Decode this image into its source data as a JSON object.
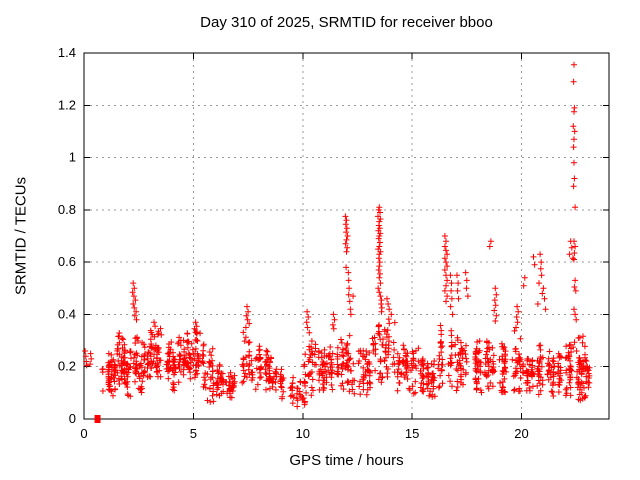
{
  "chart_data": {
    "type": "scatter",
    "title": "Day 310 of 2025, SRMTID for receiver bboo",
    "xlabel": "GPS time / hours",
    "ylabel": "SRMTID / TECUs",
    "xlim": [
      0,
      24
    ],
    "ylim": [
      0,
      1.4
    ],
    "xticks": [
      0,
      5,
      10,
      15,
      20
    ],
    "yticks": [
      0,
      0.2,
      0.4,
      0.6,
      0.8,
      1,
      1.2,
      1.4
    ],
    "grid": true,
    "legend": "none",
    "marker": {
      "shape": "plus",
      "size": 7,
      "color": "#ff0000"
    },
    "colors": {
      "axis": "#000000",
      "grid": "#999999",
      "text": "#000000",
      "marker": "#ff0000",
      "background": "#ffffff"
    },
    "series": [
      {
        "name": "SRMTID",
        "square_marker_points": [
          [
            0.62,
            0.0
          ]
        ],
        "outlier_points": [
          [
            0.05,
            0.26
          ],
          [
            0.08,
            0.24
          ],
          [
            0.1,
            0.22
          ],
          [
            0.12,
            0.205
          ],
          [
            0.3,
            0.25
          ],
          [
            0.33,
            0.23
          ],
          [
            0.28,
            0.21
          ],
          [
            2.25,
            0.52
          ],
          [
            2.3,
            0.5
          ],
          [
            2.22,
            0.485
          ],
          [
            2.28,
            0.47
          ],
          [
            2.35,
            0.455
          ],
          [
            2.25,
            0.44
          ],
          [
            2.3,
            0.425
          ],
          [
            2.38,
            0.41
          ],
          [
            2.32,
            0.395
          ],
          [
            2.4,
            0.38
          ],
          [
            3.2,
            0.37
          ],
          [
            3.25,
            0.355
          ],
          [
            5.1,
            0.37
          ],
          [
            5.15,
            0.355
          ],
          [
            5.05,
            0.345
          ],
          [
            7.45,
            0.43
          ],
          [
            7.5,
            0.41
          ],
          [
            7.42,
            0.395
          ],
          [
            7.48,
            0.38
          ],
          [
            7.55,
            0.365
          ],
          [
            7.4,
            0.35
          ],
          [
            10.2,
            0.41
          ],
          [
            10.25,
            0.39
          ],
          [
            10.18,
            0.37
          ],
          [
            10.22,
            0.35
          ],
          [
            10.3,
            0.33
          ],
          [
            11.4,
            0.4
          ],
          [
            11.45,
            0.38
          ],
          [
            11.38,
            0.36
          ],
          [
            11.42,
            0.345
          ],
          [
            11.95,
            0.775
          ],
          [
            12.0,
            0.76
          ],
          [
            11.97,
            0.745
          ],
          [
            12.02,
            0.73
          ],
          [
            11.98,
            0.715
          ],
          [
            12.05,
            0.7
          ],
          [
            12.0,
            0.685
          ],
          [
            11.96,
            0.67
          ],
          [
            12.03,
            0.655
          ],
          [
            12.0,
            0.64
          ],
          [
            11.98,
            0.58
          ],
          [
            12.08,
            0.56
          ],
          [
            12.1,
            0.53
          ],
          [
            12.12,
            0.5
          ],
          [
            12.1,
            0.475
          ],
          [
            12.15,
            0.45
          ],
          [
            12.18,
            0.42
          ],
          [
            12.2,
            0.4
          ],
          [
            12.3,
            0.47
          ],
          [
            13.5,
            0.81
          ],
          [
            13.47,
            0.8
          ],
          [
            13.53,
            0.79
          ],
          [
            13.44,
            0.775
          ],
          [
            13.55,
            0.765
          ],
          [
            13.5,
            0.755
          ],
          [
            13.48,
            0.74
          ],
          [
            13.52,
            0.73
          ],
          [
            13.46,
            0.72
          ],
          [
            13.54,
            0.71
          ],
          [
            13.5,
            0.7
          ],
          [
            13.47,
            0.69
          ],
          [
            13.53,
            0.675
          ],
          [
            13.5,
            0.66
          ],
          [
            13.45,
            0.65
          ],
          [
            13.55,
            0.64
          ],
          [
            13.5,
            0.63
          ],
          [
            13.48,
            0.615
          ],
          [
            13.52,
            0.6
          ],
          [
            13.5,
            0.585
          ],
          [
            13.47,
            0.57
          ],
          [
            13.53,
            0.555
          ],
          [
            13.5,
            0.54
          ],
          [
            13.55,
            0.52
          ],
          [
            13.45,
            0.5
          ],
          [
            13.5,
            0.485
          ],
          [
            13.55,
            0.47
          ],
          [
            13.6,
            0.455
          ],
          [
            13.58,
            0.44
          ],
          [
            13.62,
            0.425
          ],
          [
            13.6,
            0.41
          ],
          [
            13.85,
            0.46
          ],
          [
            13.9,
            0.44
          ],
          [
            13.95,
            0.42
          ],
          [
            14.05,
            0.4
          ],
          [
            16.5,
            0.7
          ],
          [
            16.55,
            0.68
          ],
          [
            16.5,
            0.66
          ],
          [
            16.55,
            0.645
          ],
          [
            16.6,
            0.63
          ],
          [
            16.5,
            0.615
          ],
          [
            16.55,
            0.6
          ],
          [
            16.6,
            0.585
          ],
          [
            16.5,
            0.57
          ],
          [
            16.55,
            0.55
          ],
          [
            16.6,
            0.53
          ],
          [
            16.55,
            0.51
          ],
          [
            16.5,
            0.49
          ],
          [
            16.6,
            0.47
          ],
          [
            16.55,
            0.45
          ],
          [
            16.75,
            0.55
          ],
          [
            16.8,
            0.52
          ],
          [
            16.78,
            0.49
          ],
          [
            16.82,
            0.46
          ],
          [
            16.76,
            0.43
          ],
          [
            16.85,
            0.4
          ],
          [
            17.05,
            0.55
          ],
          [
            17.1,
            0.52
          ],
          [
            17.08,
            0.49
          ],
          [
            17.12,
            0.46
          ],
          [
            17.45,
            0.56
          ],
          [
            17.5,
            0.53
          ],
          [
            17.48,
            0.5
          ],
          [
            17.55,
            0.47
          ],
          [
            18.6,
            0.68
          ],
          [
            18.55,
            0.66
          ],
          [
            18.8,
            0.5
          ],
          [
            18.85,
            0.475
          ],
          [
            18.78,
            0.455
          ],
          [
            18.82,
            0.435
          ],
          [
            18.75,
            0.415
          ],
          [
            18.85,
            0.395
          ],
          [
            18.8,
            0.375
          ],
          [
            19.8,
            0.43
          ],
          [
            19.85,
            0.41
          ],
          [
            19.78,
            0.39
          ],
          [
            19.82,
            0.37
          ],
          [
            19.75,
            0.35
          ],
          [
            20.15,
            0.54
          ],
          [
            20.1,
            0.51
          ],
          [
            20.55,
            0.62
          ],
          [
            20.6,
            0.59
          ],
          [
            20.85,
            0.63
          ],
          [
            20.9,
            0.6
          ],
          [
            20.88,
            0.575
          ],
          [
            20.92,
            0.55
          ],
          [
            20.8,
            0.52
          ],
          [
            21.0,
            0.5
          ],
          [
            20.95,
            0.48
          ],
          [
            21.05,
            0.46
          ],
          [
            20.75,
            0.44
          ],
          [
            21.1,
            0.42
          ],
          [
            22.25,
            0.68
          ],
          [
            22.3,
            0.655
          ],
          [
            22.2,
            0.63
          ],
          [
            22.35,
            0.615
          ],
          [
            22.4,
            1.355
          ],
          [
            22.38,
            1.29
          ],
          [
            22.42,
            1.19
          ],
          [
            22.4,
            1.175
          ],
          [
            22.37,
            1.12
          ],
          [
            22.43,
            1.1
          ],
          [
            22.4,
            1.07
          ],
          [
            22.38,
            1.04
          ],
          [
            22.4,
            0.98
          ],
          [
            22.42,
            0.92
          ],
          [
            22.38,
            0.89
          ],
          [
            22.45,
            0.81
          ],
          [
            22.4,
            0.68
          ],
          [
            22.45,
            0.66
          ],
          [
            22.42,
            0.635
          ],
          [
            22.4,
            0.61
          ],
          [
            22.45,
            0.53
          ],
          [
            22.42,
            0.505
          ],
          [
            22.48,
            0.49
          ],
          [
            22.4,
            0.42
          ],
          [
            22.45,
            0.4
          ],
          [
            22.5,
            0.38
          ]
        ],
        "baseline_bands": [
          {
            "x0": 0.75,
            "x1": 1.15,
            "n": 22,
            "ymin": 0.09,
            "ymax": 0.23
          },
          {
            "x0": 1.15,
            "x1": 1.5,
            "n": 30,
            "ymin": 0.08,
            "ymax": 0.26
          },
          {
            "x0": 1.5,
            "x1": 1.85,
            "n": 40,
            "ymin": 0.1,
            "ymax": 0.34
          },
          {
            "x0": 1.85,
            "x1": 2.15,
            "n": 25,
            "ymin": 0.08,
            "ymax": 0.26
          },
          {
            "x0": 2.15,
            "x1": 2.5,
            "n": 20,
            "ymin": 0.12,
            "ymax": 0.34
          },
          {
            "x0": 2.5,
            "x1": 3.0,
            "n": 40,
            "ymin": 0.1,
            "ymax": 0.3
          },
          {
            "x0": 3.0,
            "x1": 3.6,
            "n": 48,
            "ymin": 0.12,
            "ymax": 0.35
          },
          {
            "x0": 3.6,
            "x1": 4.2,
            "n": 42,
            "ymin": 0.1,
            "ymax": 0.3
          },
          {
            "x0": 4.2,
            "x1": 4.8,
            "n": 45,
            "ymin": 0.14,
            "ymax": 0.34
          },
          {
            "x0": 4.8,
            "x1": 5.45,
            "n": 50,
            "ymin": 0.12,
            "ymax": 0.36
          },
          {
            "x0": 5.45,
            "x1": 5.95,
            "n": 28,
            "ymin": 0.06,
            "ymax": 0.27
          },
          {
            "x0": 5.95,
            "x1": 6.5,
            "n": 28,
            "ymin": 0.08,
            "ymax": 0.22
          },
          {
            "x0": 6.5,
            "x1": 7.2,
            "n": 30,
            "ymin": 0.07,
            "ymax": 0.18
          },
          {
            "x0": 7.2,
            "x1": 7.8,
            "n": 32,
            "ymin": 0.1,
            "ymax": 0.34
          },
          {
            "x0": 7.8,
            "x1": 8.45,
            "n": 35,
            "ymin": 0.11,
            "ymax": 0.29
          },
          {
            "x0": 8.45,
            "x1": 9.0,
            "n": 32,
            "ymin": 0.1,
            "ymax": 0.27
          },
          {
            "x0": 9.0,
            "x1": 9.6,
            "n": 24,
            "ymin": 0.06,
            "ymax": 0.18
          },
          {
            "x0": 9.6,
            "x1": 10.1,
            "n": 22,
            "ymin": 0.04,
            "ymax": 0.16
          },
          {
            "x0": 10.1,
            "x1": 10.65,
            "n": 32,
            "ymin": 0.08,
            "ymax": 0.3
          },
          {
            "x0": 10.65,
            "x1": 11.2,
            "n": 38,
            "ymin": 0.1,
            "ymax": 0.28
          },
          {
            "x0": 11.2,
            "x1": 11.8,
            "n": 38,
            "ymin": 0.1,
            "ymax": 0.32
          },
          {
            "x0": 11.8,
            "x1": 12.3,
            "n": 30,
            "ymin": 0.1,
            "ymax": 0.32
          },
          {
            "x0": 12.3,
            "x1": 13.1,
            "n": 45,
            "ymin": 0.08,
            "ymax": 0.3
          },
          {
            "x0": 13.1,
            "x1": 13.75,
            "n": 30,
            "ymin": 0.12,
            "ymax": 0.38
          },
          {
            "x0": 13.75,
            "x1": 14.3,
            "n": 32,
            "ymin": 0.13,
            "ymax": 0.4
          },
          {
            "x0": 14.3,
            "x1": 15.0,
            "n": 42,
            "ymin": 0.1,
            "ymax": 0.3
          },
          {
            "x0": 15.0,
            "x1": 15.6,
            "n": 38,
            "ymin": 0.08,
            "ymax": 0.28
          },
          {
            "x0": 15.6,
            "x1": 16.2,
            "n": 32,
            "ymin": 0.08,
            "ymax": 0.26
          },
          {
            "x0": 16.2,
            "x1": 17.0,
            "n": 38,
            "ymin": 0.1,
            "ymax": 0.36
          },
          {
            "x0": 17.0,
            "x1": 17.6,
            "n": 38,
            "ymin": 0.1,
            "ymax": 0.33
          },
          {
            "x0": 17.6,
            "x1": 18.3,
            "n": 38,
            "ymin": 0.09,
            "ymax": 0.3
          },
          {
            "x0": 18.3,
            "x1": 19.0,
            "n": 38,
            "ymin": 0.1,
            "ymax": 0.32
          },
          {
            "x0": 19.0,
            "x1": 19.6,
            "n": 34,
            "ymin": 0.08,
            "ymax": 0.3
          },
          {
            "x0": 19.6,
            "x1": 20.15,
            "n": 36,
            "ymin": 0.1,
            "ymax": 0.34
          },
          {
            "x0": 20.15,
            "x1": 20.7,
            "n": 32,
            "ymin": 0.08,
            "ymax": 0.28
          },
          {
            "x0": 20.7,
            "x1": 21.3,
            "n": 36,
            "ymin": 0.08,
            "ymax": 0.3
          },
          {
            "x0": 21.3,
            "x1": 21.95,
            "n": 38,
            "ymin": 0.08,
            "ymax": 0.27
          },
          {
            "x0": 21.95,
            "x1": 22.4,
            "n": 32,
            "ymin": 0.08,
            "ymax": 0.3
          },
          {
            "x0": 22.4,
            "x1": 22.95,
            "n": 55,
            "ymin": 0.06,
            "ymax": 0.32
          },
          {
            "x0": 22.95,
            "x1": 23.15,
            "n": 12,
            "ymin": 0.1,
            "ymax": 0.22
          }
        ]
      }
    ]
  }
}
